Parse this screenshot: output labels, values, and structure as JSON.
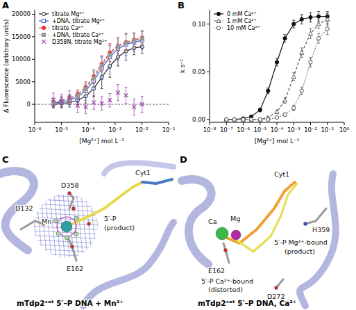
{
  "panel_letters": [
    "A",
    "B",
    "C",
    "D"
  ],
  "chart_data": [
    {
      "type": "line",
      "x_label": "[Mg²⁺] mol L⁻¹",
      "y_label": "Δ Fluorescence (arbitrary units)",
      "log": "x",
      "xlim": [
        1e-06,
        0.1
      ],
      "xticks": [
        {
          "value": 1e-06,
          "label": "10⁻⁶"
        },
        {
          "value": 1e-05,
          "label": "10⁻⁵"
        },
        {
          "value": 0.0001,
          "label": "10⁻⁴"
        },
        {
          "value": 0.001,
          "label": "10⁻³"
        },
        {
          "value": 0.01,
          "label": "10⁻²"
        },
        {
          "value": 0.1,
          "label": "10⁻¹"
        }
      ],
      "ylim": [
        -4000,
        21000
      ],
      "yticks": [
        0,
        5000,
        10000,
        15000,
        20000
      ],
      "reference_line": 0,
      "legend": "upper left",
      "x": [
        5e-06,
        1e-05,
        2e-05,
        4e-05,
        8e-05,
        0.00016,
        0.00032,
        0.00064,
        0.00128,
        0.00256,
        0.00512,
        0.01024
      ],
      "series": [
        {
          "name": "titrate Mg²⁺",
          "color": "#222222",
          "marker": "circle_open",
          "line_style": "solid",
          "values": [
            0,
            200,
            400,
            900,
            1800,
            3500,
            6000,
            8500,
            10500,
            11800,
            12500,
            12800
          ],
          "errors": [
            800,
            900,
            1000,
            1000,
            1500,
            1800,
            2500,
            2500,
            2000,
            2000,
            1500,
            1500
          ]
        },
        {
          "name": "+DNA, titrate Mg²⁺",
          "color": "#3a5fcd",
          "marker": "square_open",
          "line_style": "solid",
          "values": [
            300,
            500,
            900,
            1600,
            3000,
            5200,
            8000,
            10500,
            12300,
            13300,
            13800,
            14200
          ],
          "errors": [
            1000,
            1000,
            1000,
            1200,
            1500,
            2000,
            2500,
            2500,
            2500,
            2500,
            2000,
            2000
          ]
        },
        {
          "name": "titrate Ca²⁺",
          "color": "#e8302a",
          "marker": "circle",
          "line_style": "dashed",
          "values": [
            500,
            800,
            1300,
            2200,
            3800,
            6200,
            9000,
            11500,
            13000,
            13800,
            14300,
            14800
          ],
          "errors": [
            800,
            800,
            900,
            1000,
            1200,
            1500,
            1800,
            2000,
            1800,
            1800,
            1500,
            1500
          ]
        },
        {
          "name": "+DNA, titrate Ca²⁺",
          "color": "#999999",
          "marker": "square",
          "line_style": "dashed",
          "values": [
            400,
            700,
            1100,
            1900,
            3400,
            5800,
            8600,
            11000,
            12800,
            13600,
            14100,
            14600
          ],
          "errors": [
            1000,
            1000,
            1000,
            1200,
            1400,
            1800,
            2000,
            2200,
            2000,
            2000,
            1800,
            1800
          ]
        },
        {
          "name": "D358N, titrate Mg²⁺",
          "color": "#9a3fa8",
          "marker": "x",
          "line_style": "none",
          "values": [
            1000,
            700,
            1500,
            -300,
            -600,
            400,
            200,
            900,
            2600,
            2000,
            -600,
            0
          ],
          "errors": [
            1500,
            1500,
            1500,
            1500,
            1500,
            1500,
            1500,
            1500,
            1800,
            1800,
            1800,
            1800
          ]
        }
      ]
    },
    {
      "type": "line",
      "x_label": "[Mg²⁺] mol L⁻¹",
      "y_label": "k s⁻¹",
      "log": "x",
      "xlim": [
        1e-08,
        1
      ],
      "xticks": [
        {
          "value": 1e-08,
          "label": "10⁻⁸"
        },
        {
          "value": 1e-07,
          "label": "10⁻⁷"
        },
        {
          "value": 1e-06,
          "label": "10⁻⁶"
        },
        {
          "value": 1e-05,
          "label": "10⁻⁵"
        },
        {
          "value": 0.0001,
          "label": "10⁻⁴"
        },
        {
          "value": 0.001,
          "label": "10⁻³"
        },
        {
          "value": 0.01,
          "label": "10⁻²"
        },
        {
          "value": 0.1,
          "label": "10⁻¹"
        },
        {
          "value": 1,
          "label": "10⁰"
        }
      ],
      "ylim": [
        -0.003,
        0.115
      ],
      "yticks": [
        {
          "value": 0,
          "label": "0.00"
        },
        {
          "value": 0.05,
          "label": "0.05"
        },
        {
          "value": 0.1,
          "label": "0.10"
        }
      ],
      "legend": "upper left",
      "x": [
        1e-07,
        3e-07,
        1e-06,
        3e-06,
        1e-05,
        3e-05,
        0.0001,
        0.0003,
        0.001,
        0.003,
        0.01,
        0.03,
        0.1
      ],
      "series": [
        {
          "name": "0 mM Ca²⁺",
          "color": "#111111",
          "marker": "circle",
          "line_style": "solid",
          "values": [
            0,
            0,
            0.001,
            0.003,
            0.01,
            0.03,
            0.06,
            0.085,
            0.1,
            0.105,
            0.107,
            0.108,
            0.108
          ],
          "errors": [
            0.001,
            0.001,
            0.001,
            0.001,
            0.002,
            0.003,
            0.004,
            0.004,
            0.004,
            0.005,
            0.005,
            0.005,
            0.005
          ]
        },
        {
          "name": "1 mM Ca²⁺",
          "color": "#555555",
          "marker": "triangle_open",
          "line_style": "dashed",
          "values": [
            0,
            0,
            0,
            0,
            0,
            0.002,
            0.008,
            0.02,
            0.045,
            0.07,
            0.09,
            0.1,
            0.105
          ],
          "errors": [
            0.001,
            0.001,
            0.001,
            0.001,
            0.001,
            0.001,
            0.002,
            0.003,
            0.004,
            0.005,
            0.005,
            0.005,
            0.006
          ]
        },
        {
          "name": "10 mM Ca²⁺",
          "color": "#555555",
          "marker": "circle_open",
          "line_style": "dotted",
          "values": [
            0,
            0,
            0,
            0,
            0,
            0,
            0.002,
            0.005,
            0.012,
            0.03,
            0.06,
            0.085,
            0.095
          ],
          "errors": [
            0.001,
            0.001,
            0.001,
            0.001,
            0.001,
            0.001,
            0.001,
            0.002,
            0.003,
            0.004,
            0.005,
            0.005,
            0.006
          ]
        }
      ]
    }
  ],
  "structures": [
    {
      "labels": [
        "D358",
        "Cyt1",
        "D132",
        "Mn",
        "5′-P",
        "(product)",
        "E162"
      ],
      "caption": "mTdp2ᶜᵃᵗ 5′–P DNA + Mn²⁺"
    },
    {
      "labels": [
        "Cyt1",
        "Ca",
        "Mg",
        "H359",
        "5′-P Mg²⁺-bound",
        "(product)",
        "5′-P Ca²⁺-bound",
        "(distorted)",
        "E162",
        "D272"
      ],
      "caption": "mTdp2ᶜᵃᵗ 5′–P DNA, Ca²⁺"
    }
  ]
}
